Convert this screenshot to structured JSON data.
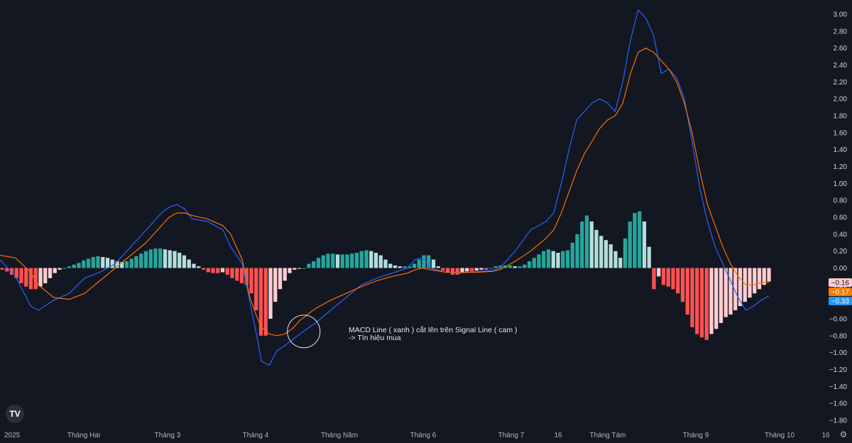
{
  "colors": {
    "background": "#131722",
    "macd_line": "#2962ff",
    "signal_line": "#ff6d00",
    "hist_pos_strong": "#26a69a",
    "hist_pos_weak": "#b2dfdb",
    "hist_neg_strong": "#ff5252",
    "hist_neg_weak": "#ffcdd2",
    "badge_hist": "#ffcdd2",
    "badge_signal": "#f57c00",
    "badge_macd": "#2196f3"
  },
  "branding": {
    "logo_text": "TV",
    "settings_icon": "gear-icon"
  },
  "chart_data": {
    "type": "line",
    "indicator": "MACD",
    "y_axis": {
      "range": [
        -1.9,
        3.1
      ],
      "ticks": [
        "3.00",
        "2.80",
        "2.60",
        "2.40",
        "2.20",
        "2.00",
        "1.80",
        "1.60",
        "1.40",
        "1.20",
        "1.00",
        "0.80",
        "0.60",
        "0.40",
        "0.20",
        "0.00",
        "-0.20",
        "-0.40",
        "-0.60",
        "-0.80",
        "-1.00",
        "-1.20",
        "-1.40",
        "-1.60",
        "-1.80"
      ]
    },
    "x_axis": {
      "ticks": [
        {
          "label": "2025",
          "t": 0
        },
        {
          "label": "Tháng Hai",
          "t": 24
        },
        {
          "label": "Tháng 3",
          "t": 44
        },
        {
          "label": "Tháng 4",
          "t": 64
        },
        {
          "label": "Tháng Năm",
          "t": 86
        },
        {
          "label": "Tháng 6",
          "t": 107
        },
        {
          "label": "Tháng 7",
          "t": 128
        },
        {
          "label": "16",
          "t": 138
        },
        {
          "label": "Tháng Tám",
          "t": 150
        },
        {
          "label": "Tháng 9",
          "t": 172
        },
        {
          "label": "Tháng 10",
          "t": 194
        },
        {
          "label": "16",
          "t": 204
        }
      ]
    },
    "series": [
      {
        "name": "MACD",
        "color": "#2962ff",
        "points": [
          [
            0,
            0.1
          ],
          [
            4,
            -0.1
          ],
          [
            8,
            -0.45
          ],
          [
            10,
            -0.5
          ],
          [
            14,
            -0.38
          ],
          [
            18,
            -0.3
          ],
          [
            22,
            -0.12
          ],
          [
            26,
            -0.05
          ],
          [
            30,
            0.05
          ],
          [
            34,
            0.25
          ],
          [
            38,
            0.45
          ],
          [
            42,
            0.65
          ],
          [
            44,
            0.72
          ],
          [
            46,
            0.75
          ],
          [
            48,
            0.7
          ],
          [
            50,
            0.58
          ],
          [
            54,
            0.55
          ],
          [
            58,
            0.45
          ],
          [
            60,
            0.25
          ],
          [
            63,
            0.05
          ],
          [
            65,
            -0.4
          ],
          [
            67,
            -0.85
          ],
          [
            68,
            -1.1
          ],
          [
            70,
            -1.15
          ],
          [
            72,
            -0.98
          ],
          [
            74,
            -0.92
          ],
          [
            76,
            -0.85
          ],
          [
            78,
            -0.78
          ],
          [
            82,
            -0.65
          ],
          [
            86,
            -0.5
          ],
          [
            90,
            -0.35
          ],
          [
            94,
            -0.2
          ],
          [
            98,
            -0.12
          ],
          [
            102,
            -0.06
          ],
          [
            106,
            0.0
          ],
          [
            108,
            0.1
          ],
          [
            110,
            0.12
          ],
          [
            112,
            0.0
          ],
          [
            116,
            -0.05
          ],
          [
            120,
            -0.06
          ],
          [
            124,
            -0.04
          ],
          [
            128,
            -0.03
          ],
          [
            130,
            0.0
          ],
          [
            134,
            0.2
          ],
          [
            138,
            0.45
          ],
          [
            142,
            0.55
          ],
          [
            144,
            0.65
          ],
          [
            146,
            1.0
          ],
          [
            148,
            1.4
          ],
          [
            150,
            1.75
          ],
          [
            152,
            1.85
          ],
          [
            154,
            1.95
          ],
          [
            156,
            2.0
          ],
          [
            158,
            1.95
          ],
          [
            160,
            1.85
          ],
          [
            162,
            2.2
          ],
          [
            164,
            2.7
          ],
          [
            166,
            3.05
          ],
          [
            168,
            2.95
          ],
          [
            170,
            2.75
          ],
          [
            172,
            2.3
          ],
          [
            174,
            2.35
          ],
          [
            176,
            2.25
          ],
          [
            178,
            2.0
          ],
          [
            180,
            1.5
          ],
          [
            182,
            0.95
          ],
          [
            184,
            0.55
          ],
          [
            186,
            0.25
          ],
          [
            188,
            0.05
          ],
          [
            190,
            -0.15
          ],
          [
            192,
            -0.35
          ],
          [
            194,
            -0.5
          ],
          [
            196,
            -0.45
          ],
          [
            198,
            -0.38
          ],
          [
            200,
            -0.33
          ]
        ]
      },
      {
        "name": "Signal",
        "color": "#ff6d00",
        "points": [
          [
            0,
            0.15
          ],
          [
            4,
            0.12
          ],
          [
            8,
            -0.05
          ],
          [
            10,
            -0.2
          ],
          [
            14,
            -0.35
          ],
          [
            18,
            -0.37
          ],
          [
            22,
            -0.3
          ],
          [
            26,
            -0.15
          ],
          [
            30,
            0.0
          ],
          [
            34,
            0.15
          ],
          [
            38,
            0.3
          ],
          [
            42,
            0.5
          ],
          [
            44,
            0.6
          ],
          [
            46,
            0.65
          ],
          [
            48,
            0.65
          ],
          [
            50,
            0.62
          ],
          [
            54,
            0.58
          ],
          [
            58,
            0.5
          ],
          [
            60,
            0.4
          ],
          [
            63,
            0.1
          ],
          [
            65,
            -0.35
          ],
          [
            67,
            -0.6
          ],
          [
            68,
            -0.7
          ],
          [
            70,
            -0.78
          ],
          [
            72,
            -0.8
          ],
          [
            74,
            -0.78
          ],
          [
            76,
            -0.72
          ],
          [
            78,
            -0.62
          ],
          [
            82,
            -0.48
          ],
          [
            86,
            -0.38
          ],
          [
            90,
            -0.3
          ],
          [
            94,
            -0.22
          ],
          [
            98,
            -0.15
          ],
          [
            102,
            -0.1
          ],
          [
            106,
            -0.06
          ],
          [
            108,
            -0.02
          ],
          [
            110,
            0.0
          ],
          [
            112,
            -0.02
          ],
          [
            116,
            -0.05
          ],
          [
            120,
            -0.05
          ],
          [
            124,
            -0.05
          ],
          [
            128,
            -0.04
          ],
          [
            130,
            -0.02
          ],
          [
            134,
            0.08
          ],
          [
            138,
            0.2
          ],
          [
            142,
            0.35
          ],
          [
            144,
            0.45
          ],
          [
            146,
            0.65
          ],
          [
            148,
            0.9
          ],
          [
            150,
            1.15
          ],
          [
            152,
            1.35
          ],
          [
            154,
            1.5
          ],
          [
            156,
            1.65
          ],
          [
            158,
            1.75
          ],
          [
            160,
            1.8
          ],
          [
            162,
            1.95
          ],
          [
            164,
            2.3
          ],
          [
            166,
            2.55
          ],
          [
            168,
            2.6
          ],
          [
            170,
            2.55
          ],
          [
            172,
            2.45
          ],
          [
            174,
            2.35
          ],
          [
            176,
            2.2
          ],
          [
            178,
            1.95
          ],
          [
            180,
            1.6
          ],
          [
            182,
            1.15
          ],
          [
            184,
            0.75
          ],
          [
            186,
            0.5
          ],
          [
            188,
            0.25
          ],
          [
            190,
            0.05
          ],
          [
            192,
            -0.1
          ],
          [
            194,
            -0.2
          ],
          [
            196,
            -0.2
          ],
          [
            198,
            -0.17
          ],
          [
            200,
            -0.17
          ]
        ]
      },
      {
        "name": "Histogram",
        "type": "bar",
        "values": [
          -0.02,
          -0.04,
          -0.08,
          -0.12,
          -0.18,
          -0.22,
          -0.25,
          -0.25,
          -0.22,
          -0.18,
          -0.12,
          -0.06,
          -0.02,
          0.0,
          0.02,
          0.04,
          0.06,
          0.09,
          0.11,
          0.13,
          0.14,
          0.13,
          0.12,
          0.1,
          0.08,
          0.07,
          0.08,
          0.11,
          0.14,
          0.17,
          0.2,
          0.22,
          0.23,
          0.23,
          0.22,
          0.21,
          0.2,
          0.18,
          0.15,
          0.1,
          0.05,
          0.02,
          -0.02,
          -0.05,
          -0.06,
          -0.06,
          -0.05,
          -0.08,
          -0.12,
          -0.15,
          -0.18,
          -0.2,
          -0.3,
          -0.5,
          -0.8,
          -0.8,
          -0.6,
          -0.4,
          -0.25,
          -0.15,
          -0.06,
          -0.02,
          -0.01,
          0.0,
          0.05,
          0.08,
          0.12,
          0.15,
          0.17,
          0.17,
          0.16,
          0.16,
          0.16,
          0.17,
          0.18,
          0.2,
          0.21,
          0.2,
          0.18,
          0.15,
          0.1,
          0.05,
          0.03,
          0.02,
          0.02,
          0.02,
          0.05,
          0.1,
          0.15,
          0.15,
          0.1,
          0.02,
          -0.03,
          -0.05,
          -0.08,
          -0.08,
          -0.05,
          -0.04,
          -0.04,
          -0.03,
          -0.02,
          -0.02,
          0.0,
          0.02,
          0.03,
          0.03,
          0.03,
          0.02,
          0.02,
          0.04,
          0.08,
          0.12,
          0.16,
          0.2,
          0.22,
          0.2,
          0.18,
          0.2,
          0.21,
          0.3,
          0.4,
          0.55,
          0.62,
          0.55,
          0.45,
          0.38,
          0.33,
          0.28,
          0.2,
          0.12,
          0.35,
          0.55,
          0.65,
          0.67,
          0.55,
          0.25,
          -0.25,
          -0.1,
          -0.2,
          -0.22,
          -0.25,
          -0.3,
          -0.4,
          -0.55,
          -0.7,
          -0.78,
          -0.82,
          -0.85,
          -0.78,
          -0.72,
          -0.65,
          -0.58,
          -0.55,
          -0.5,
          -0.45,
          -0.4,
          -0.35,
          -0.3,
          -0.25,
          -0.2,
          -0.16
        ]
      }
    ],
    "badges": [
      {
        "label": "-0.16",
        "value": -0.16,
        "bg": "#ffcdd2",
        "fg": "#131722"
      },
      {
        "label": "-0.17",
        "value": -0.17,
        "bg": "#f57c00",
        "fg": "#ffffff"
      },
      {
        "label": "-0.33",
        "value": -0.33,
        "bg": "#2196f3",
        "fg": "#ffffff"
      }
    ],
    "annotation": {
      "line1": "MACD Line ( xanh ) cắt lên trên Signal Line ( cam )",
      "line2": "-> Tín hiệu mua",
      "circle_t": 79,
      "circle_value": -0.75
    }
  }
}
